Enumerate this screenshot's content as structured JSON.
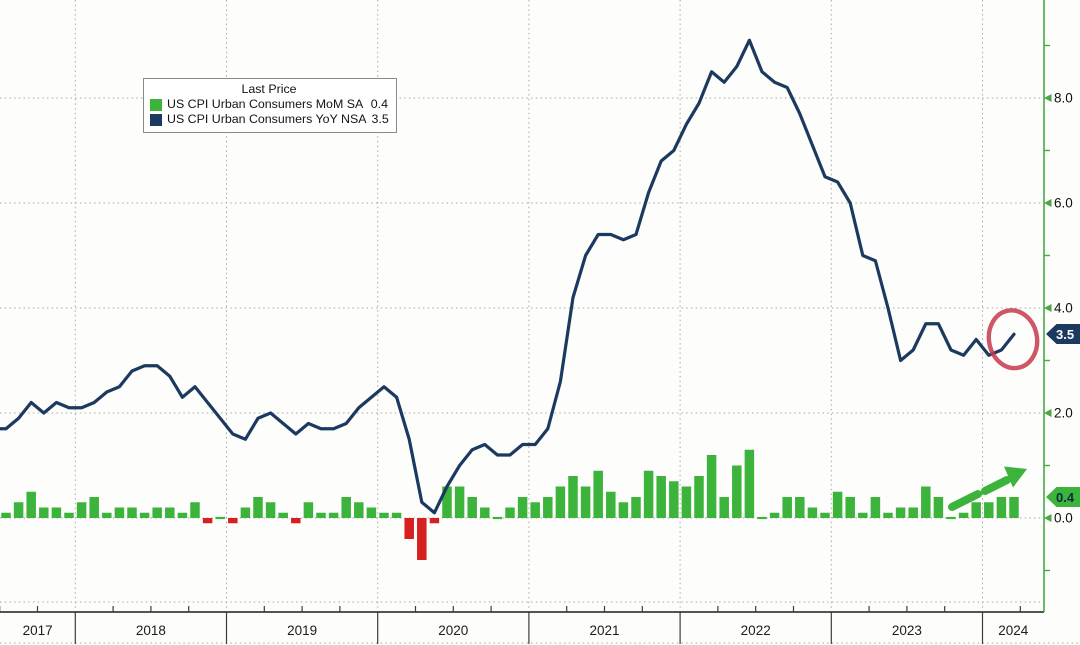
{
  "chart": {
    "background": "#fdfdfb",
    "legend": {
      "title": "Last Price",
      "entries": [
        {
          "label": "US CPI Urban Consumers MoM SA",
          "value": "0.4",
          "swatch": "#3cb43c"
        },
        {
          "label": "US CPI Urban Consumers YoY NSA",
          "value": "3.5",
          "swatch": "#1c3a5f"
        }
      ]
    },
    "tags": {
      "yoy": {
        "text": "3.5",
        "bg": "#1c3a5f",
        "fg": "#ffffff"
      },
      "mom": {
        "text": "0.4",
        "bg": "#3cb43c",
        "fg": "#0d2a45"
      }
    }
  },
  "chart_data": {
    "type": "combo",
    "frequency": "monthly",
    "legend_position": "top-left",
    "grid": {
      "horizontal": true,
      "vertical": "year-boundaries",
      "style": "dotted"
    },
    "x_year_labels": [
      "2017",
      "2018",
      "2019",
      "2020",
      "2021",
      "2022",
      "2023",
      "2024"
    ],
    "y_axis": {
      "side": "right",
      "color": "#48a848",
      "major_ticks": [
        0,
        2,
        4,
        6,
        8
      ],
      "tick_labels": [
        "0.0",
        "2.0",
        "4.0",
        "6.0",
        "8.0"
      ],
      "minor_ticks": [
        -1,
        1,
        3,
        5,
        7,
        9
      ],
      "range": [
        -1.8,
        9.8
      ]
    },
    "months": [
      "2017-07",
      "2017-08",
      "2017-09",
      "2017-10",
      "2017-11",
      "2017-12",
      "2018-01",
      "2018-02",
      "2018-03",
      "2018-04",
      "2018-05",
      "2018-06",
      "2018-07",
      "2018-08",
      "2018-09",
      "2018-10",
      "2018-11",
      "2018-12",
      "2019-01",
      "2019-02",
      "2019-03",
      "2019-04",
      "2019-05",
      "2019-06",
      "2019-07",
      "2019-08",
      "2019-09",
      "2019-10",
      "2019-11",
      "2019-12",
      "2020-01",
      "2020-02",
      "2020-03",
      "2020-04",
      "2020-05",
      "2020-06",
      "2020-07",
      "2020-08",
      "2020-09",
      "2020-10",
      "2020-11",
      "2020-12",
      "2021-01",
      "2021-02",
      "2021-03",
      "2021-04",
      "2021-05",
      "2021-06",
      "2021-07",
      "2021-08",
      "2021-09",
      "2021-10",
      "2021-11",
      "2021-12",
      "2022-01",
      "2022-02",
      "2022-03",
      "2022-04",
      "2022-05",
      "2022-06",
      "2022-07",
      "2022-08",
      "2022-09",
      "2022-10",
      "2022-11",
      "2022-12",
      "2023-01",
      "2023-02",
      "2023-03",
      "2023-04",
      "2023-05",
      "2023-06",
      "2023-07",
      "2023-08",
      "2023-09",
      "2023-10",
      "2023-11",
      "2023-12",
      "2024-01",
      "2024-02",
      "2024-03"
    ],
    "series": [
      {
        "name": "US CPI Urban Consumers MoM SA",
        "type": "bar",
        "last_price": 0.4,
        "color_positive": "#3cb43c",
        "color_negative": "#d62020",
        "values": [
          0.1,
          0.3,
          0.5,
          0.2,
          0.2,
          0.1,
          0.3,
          0.4,
          0.1,
          0.2,
          0.2,
          0.1,
          0.2,
          0.2,
          0.1,
          0.3,
          -0.1,
          0.0,
          -0.1,
          0.2,
          0.4,
          0.3,
          0.1,
          -0.1,
          0.3,
          0.1,
          0.1,
          0.4,
          0.3,
          0.2,
          0.1,
          0.1,
          -0.4,
          -0.8,
          -0.1,
          0.6,
          0.6,
          0.4,
          0.2,
          0.0,
          0.2,
          0.4,
          0.3,
          0.4,
          0.6,
          0.8,
          0.6,
          0.9,
          0.5,
          0.3,
          0.4,
          0.9,
          0.8,
          0.7,
          0.6,
          0.8,
          1.2,
          0.4,
          1.0,
          1.3,
          0.0,
          0.1,
          0.4,
          0.4,
          0.2,
          0.1,
          0.5,
          0.4,
          0.1,
          0.4,
          0.1,
          0.2,
          0.2,
          0.6,
          0.4,
          0.0,
          0.1,
          0.3,
          0.3,
          0.4,
          0.4
        ]
      },
      {
        "name": "US CPI Urban Consumers YoY NSA",
        "type": "line",
        "last_price": 3.5,
        "color": "#1c3a5f",
        "values": [
          1.7,
          1.9,
          2.2,
          2.0,
          2.2,
          2.1,
          2.1,
          2.2,
          2.4,
          2.5,
          2.8,
          2.9,
          2.9,
          2.7,
          2.3,
          2.5,
          2.2,
          1.9,
          1.6,
          1.5,
          1.9,
          2.0,
          1.8,
          1.6,
          1.8,
          1.7,
          1.7,
          1.8,
          2.1,
          2.3,
          2.5,
          2.3,
          1.5,
          0.3,
          0.1,
          0.6,
          1.0,
          1.3,
          1.4,
          1.2,
          1.2,
          1.4,
          1.4,
          1.7,
          2.6,
          4.2,
          5.0,
          5.4,
          5.4,
          5.3,
          5.4,
          6.2,
          6.8,
          7.0,
          7.5,
          7.9,
          8.5,
          8.3,
          8.6,
          9.1,
          8.5,
          8.3,
          8.2,
          7.7,
          7.1,
          6.5,
          6.4,
          6.0,
          5.0,
          4.9,
          4.0,
          3.0,
          3.2,
          3.7,
          3.7,
          3.2,
          3.1,
          3.4,
          3.1,
          3.2,
          3.5
        ]
      }
    ],
    "annotations": {
      "highlight_circle": {
        "target": "last YoY data point",
        "color": "#c53a4b"
      },
      "trend_arrow": {
        "direction": "up-right",
        "target": "last MoM bars",
        "color": "#3cb43c"
      }
    }
  }
}
